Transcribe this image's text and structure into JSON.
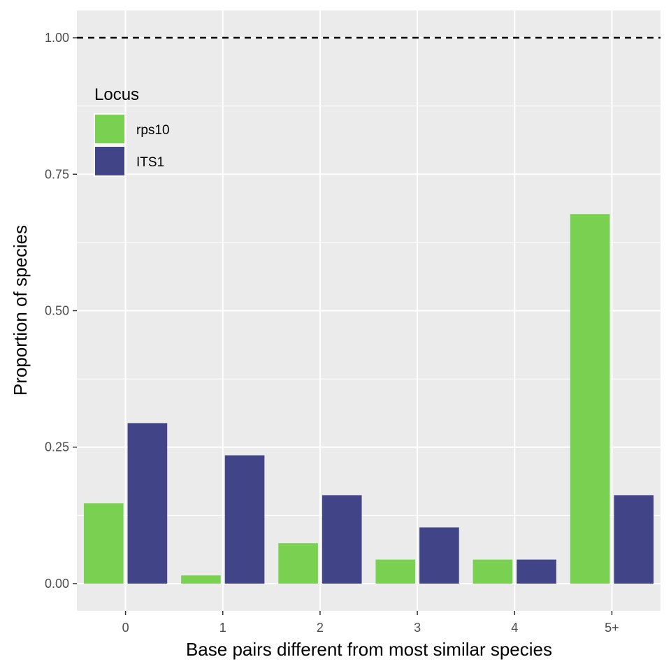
{
  "chart_data": {
    "type": "bar",
    "title": "",
    "xlabel": "Base pairs different from most similar species",
    "ylabel": "Proportion of species",
    "categories": [
      "0",
      "1",
      "2",
      "3",
      "4",
      "5+"
    ],
    "series": [
      {
        "name": "rps10",
        "color": "#7AD151",
        "values": [
          0.147,
          0.015,
          0.074,
          0.044,
          0.044,
          0.677
        ]
      },
      {
        "name": "ITS1",
        "color": "#414487",
        "values": [
          0.294,
          0.235,
          0.162,
          0.103,
          0.044,
          0.162
        ]
      }
    ],
    "ylim": [
      -0.05,
      1.05
    ],
    "y_ticks": [
      0,
      0.25,
      0.5,
      0.75,
      1
    ],
    "y_tick_labels": [
      "0.00",
      "0.25",
      "0.50",
      "0.75",
      "1.00"
    ],
    "reference_line": {
      "y": 1.0,
      "style": "dashed",
      "color": "#000000"
    },
    "legend": {
      "title": "Locus",
      "position": "top-left inside"
    },
    "grid": true,
    "panel_background": "#EBEBEB",
    "gridline_color": "#ffffff"
  }
}
